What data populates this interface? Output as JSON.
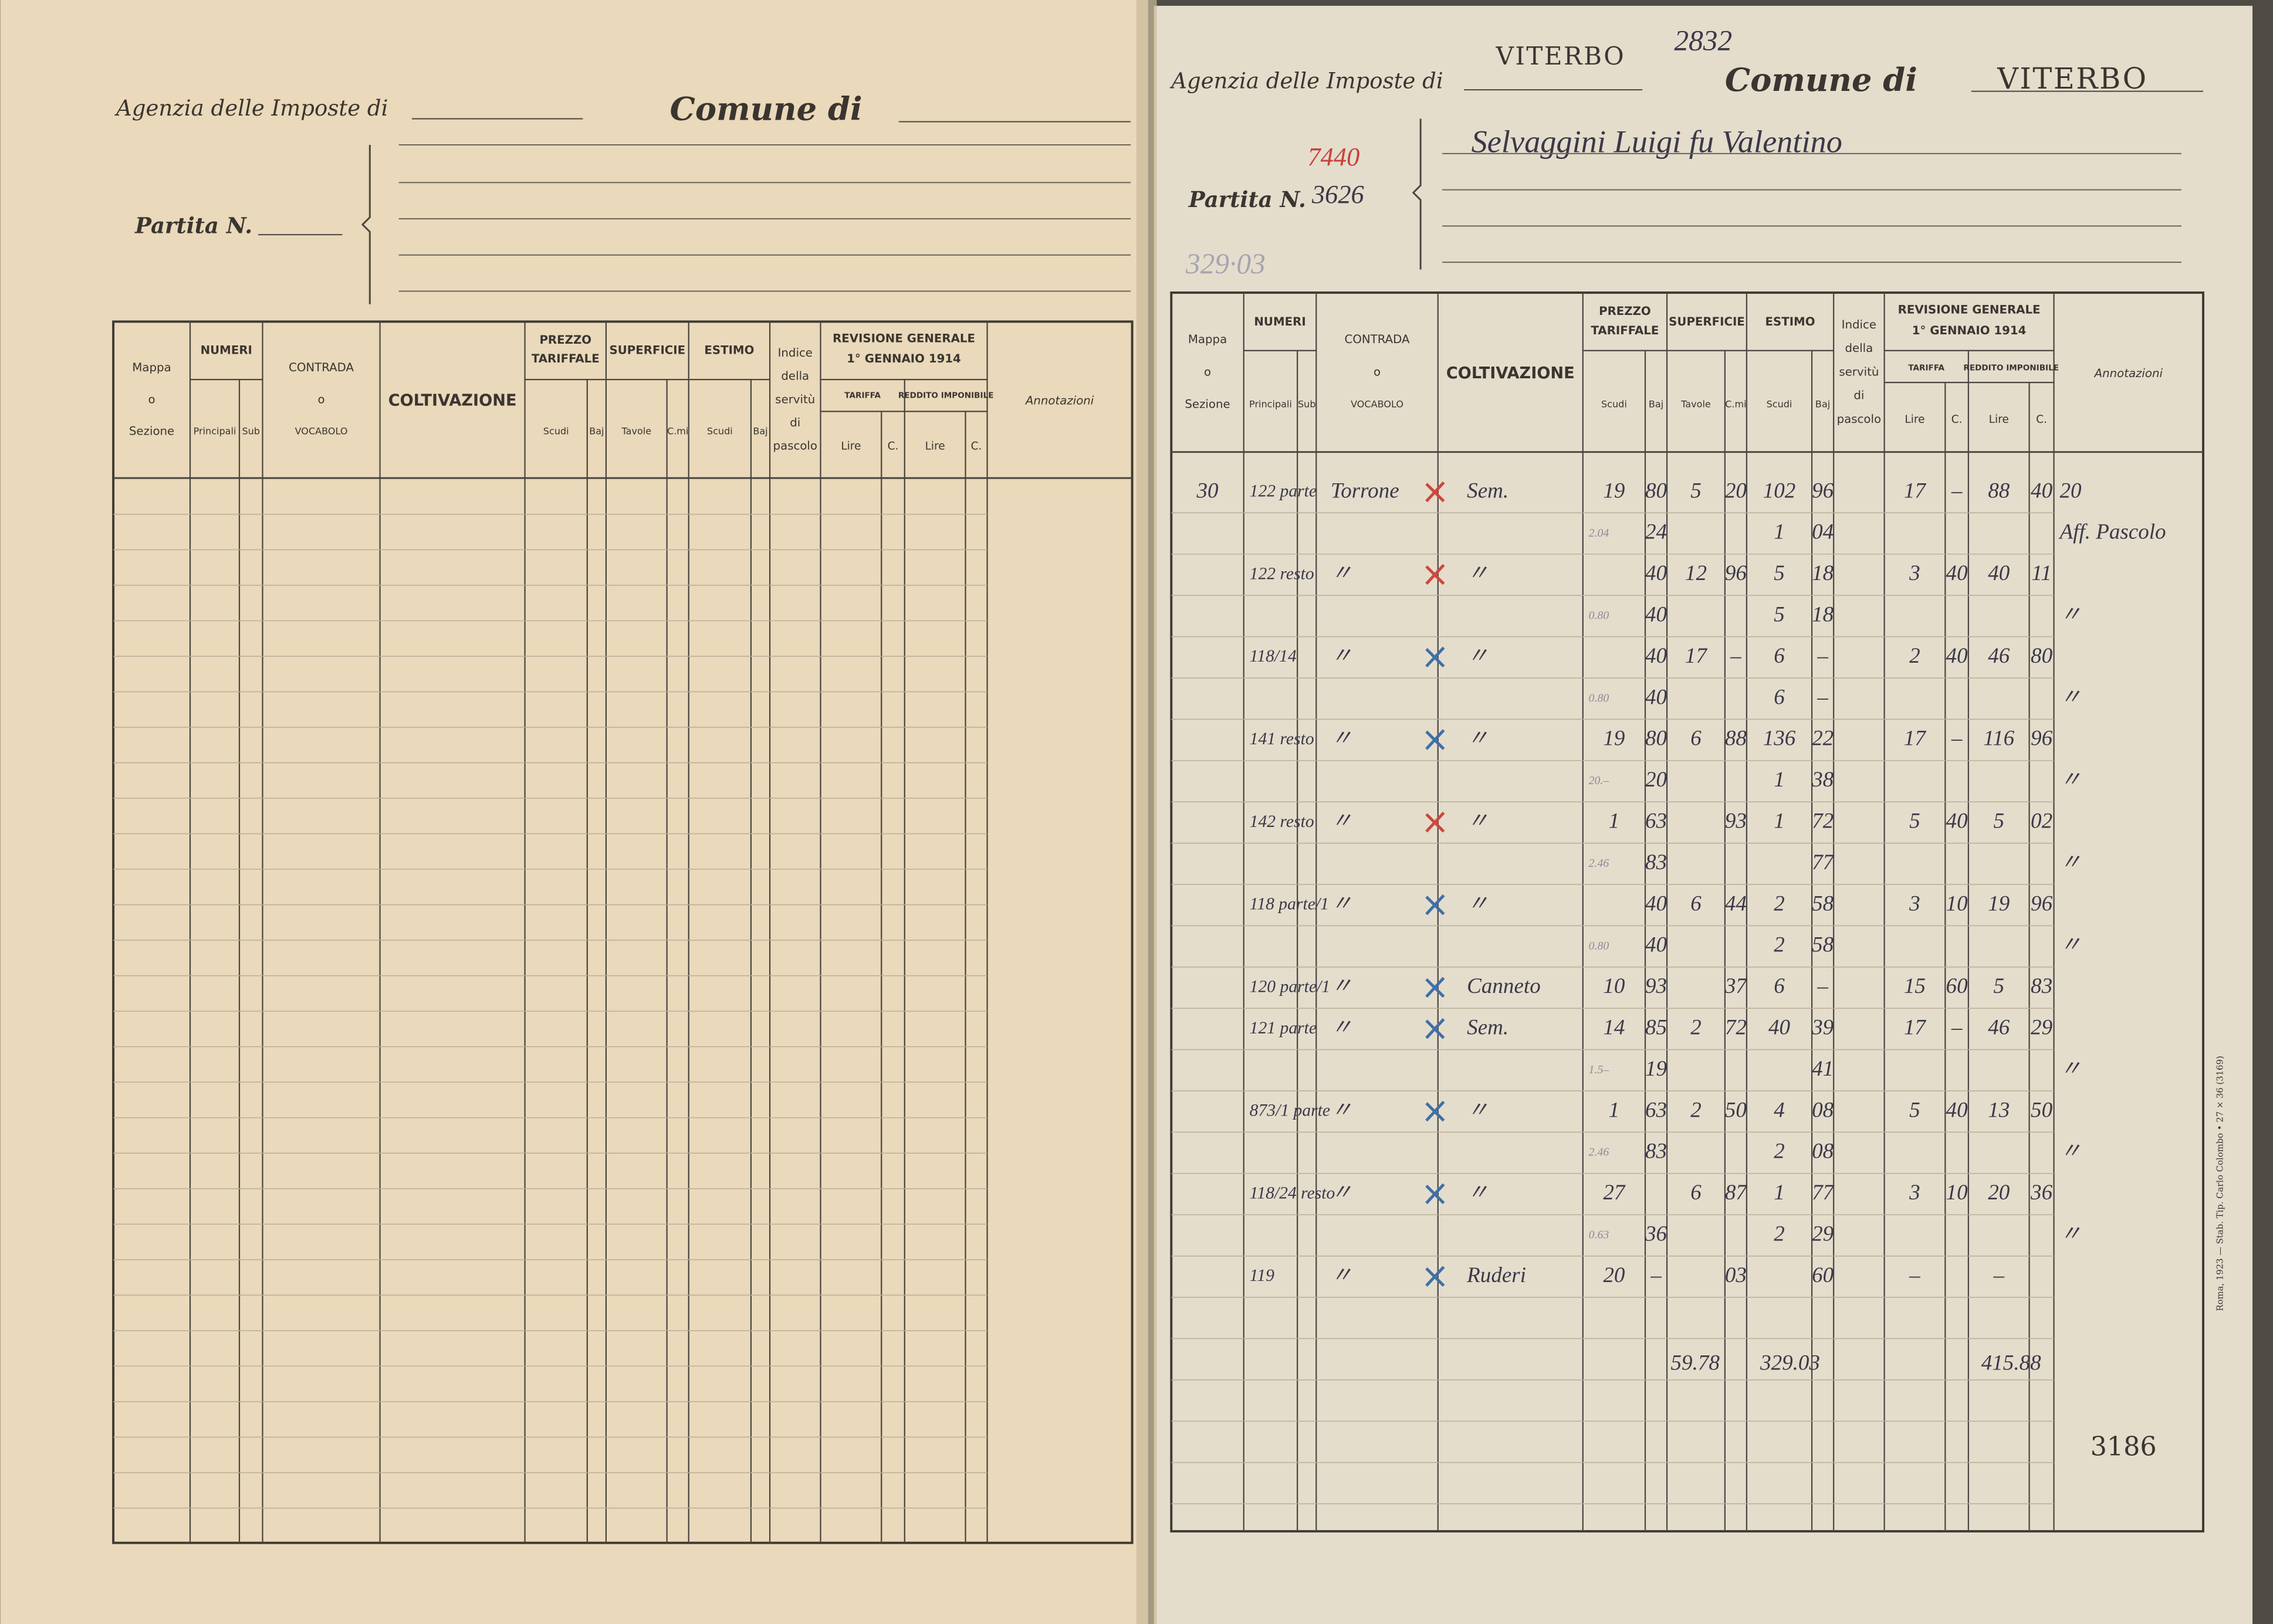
{
  "table_header": {
    "mappa": [
      "Mappa",
      "o",
      "Sezione"
    ],
    "numeri": "NUMERI",
    "principali": "Principali",
    "sub": "Sub",
    "contrada": [
      "CONTRADA",
      "o",
      "VOCABOLO"
    ],
    "coltivazione": "COLTIVAZIONE",
    "prezzo": [
      "PREZZO",
      "TARIFFALE"
    ],
    "scudi": "Scudi",
    "baj": "Baj",
    "superficie": "SUPERFICIE",
    "tavole": "Tavole",
    "cmi": "C.mi",
    "estimo": "ESTIMO",
    "indice": [
      "Indice",
      "della",
      "servitù",
      "di",
      "pascolo"
    ],
    "revisione": [
      "REVISIONE GENERALE",
      "1° GENNAIO 1914"
    ],
    "tariffa": "TARIFFA",
    "reddito": "REDDITO IMPONIBILE",
    "lire": "Lire",
    "c": "C.",
    "annotazioni": "Annotazioni"
  },
  "left_page": {
    "agency_label": "Agenzia delle Imposte di",
    "comune_label": "Comune di",
    "partita_label": "Partita N."
  },
  "right_page": {
    "agency_label": "Agenzia delle Imposte di",
    "agency_value": "VITERBO",
    "register_number": "2832",
    "comune_label": "Comune di",
    "comune_value": "VITERBO",
    "partita_label": "Partita N.",
    "partita_old": "7440",
    "partita_value": "3626",
    "owner": "Selvaggini Luigi fu Valentino",
    "pencil_note": "329·03",
    "rows": [
      {
        "map": "30",
        "num": "122 parte",
        "contrada": "Torrone",
        "colt": "Sem.",
        "ps": "19",
        "pb": "80",
        "tav": "5",
        "cmi": "20",
        "es": "102",
        "eb": "96",
        "tl": "17",
        "tc": "–",
        "rl": "88",
        "rc": "40",
        "ann": "20",
        "x_color": "#d0463c"
      },
      {
        "side": "2.04",
        "pb": "24",
        "es": "1",
        "eb": "04",
        "ann": "Aff. Pascolo"
      },
      {
        "num": "122 resto",
        "contrada": "〃",
        "colt": "〃",
        "pb": "40",
        "tav": "12",
        "cmi": "96",
        "es": "5",
        "eb": "18",
        "tl": "3",
        "tc": "40",
        "rl": "40",
        "rc": "11",
        "x_color": "#d0463c"
      },
      {
        "side": "0.80",
        "pb": "40",
        "es": "5",
        "eb": "18",
        "ann": "〃"
      },
      {
        "num": "118/14",
        "contrada": "〃",
        "colt": "〃",
        "pb": "40",
        "tav": "17",
        "cmi": "–",
        "es": "6",
        "eb": "–",
        "tl": "2",
        "tc": "40",
        "rl": "46",
        "rc": "80",
        "x_color": "#3f6fa8"
      },
      {
        "side": "0.80",
        "pb": "40",
        "es": "6",
        "eb": "–",
        "ann": "〃"
      },
      {
        "num": "141 resto",
        "contrada": "〃",
        "colt": "〃",
        "ps": "19",
        "pb": "80",
        "tav": "6",
        "cmi": "88",
        "es": "136",
        "eb": "22",
        "tl": "17",
        "tc": "–",
        "rl": "116",
        "rc": "96",
        "x_color": "#3f6fa8"
      },
      {
        "side": "20.–",
        "pb": "20",
        "es": "1",
        "eb": "38",
        "ann": "〃"
      },
      {
        "num": "142 resto",
        "contrada": "〃",
        "colt": "〃",
        "ps": "1",
        "pb": "63",
        "cmi": "93",
        "es": "1",
        "eb": "72",
        "tl": "5",
        "tc": "40",
        "rl": "5",
        "rc": "02",
        "x_color": "#d0463c"
      },
      {
        "side": "2.46",
        "pb": "83",
        "eb": "77",
        "ann": "〃"
      },
      {
        "num": "118 parte/1",
        "contrada": "〃",
        "colt": "〃",
        "pb": "40",
        "tav": "6",
        "cmi": "44",
        "es": "2",
        "eb": "58",
        "tl": "3",
        "tc": "10",
        "rl": "19",
        "rc": "96",
        "x_color": "#3f6fa8"
      },
      {
        "side": "0.80",
        "pb": "40",
        "es": "2",
        "eb": "58",
        "ann": "〃"
      },
      {
        "num": "120 parte/1",
        "contrada": "〃",
        "colt": "Canneto",
        "ps": "10",
        "pb": "93",
        "cmi": "37",
        "es": "6",
        "eb": "–",
        "tl": "15",
        "tc": "60",
        "rl": "5",
        "rc": "83",
        "x_color": "#3f6fa8"
      },
      {
        "num": "121 parte",
        "contrada": "〃",
        "colt": "Sem.",
        "ps": "14",
        "pb": "85",
        "tav": "2",
        "cmi": "72",
        "es": "40",
        "eb": "39",
        "tl": "17",
        "tc": "–",
        "rl": "46",
        "rc": "29",
        "x_color": "#3f6fa8"
      },
      {
        "side": "1.5–",
        "pb": "19",
        "eb": "41",
        "ann": "〃"
      },
      {
        "num": "873/1 parte",
        "contrada": "〃",
        "colt": "〃",
        "ps": "1",
        "pb": "63",
        "tav": "2",
        "cmi": "50",
        "es": "4",
        "eb": "08",
        "tl": "5",
        "tc": "40",
        "rl": "13",
        "rc": "50",
        "x_color": "#3f6fa8"
      },
      {
        "side": "2.46",
        "pb": "83",
        "es": "2",
        "eb": "08",
        "ann": "〃"
      },
      {
        "num": "118/24 resto",
        "contrada": "〃",
        "colt": "〃",
        "ps": "27",
        "tav": "6",
        "cmi": "87",
        "es": "1",
        "eb": "77",
        "tl": "3",
        "tc": "10",
        "rl": "20",
        "rc": "36",
        "x_color": "#3f6fa8"
      },
      {
        "side": "0.63",
        "pb": "36",
        "es": "2",
        "eb": "29",
        "ann": "〃"
      },
      {
        "num": "119",
        "contrada": "〃",
        "colt": "Ruderi",
        "ps": "20",
        "pb": "–",
        "cmi": "03",
        "eb": "60",
        "tl": "–",
        "rl": "–",
        "x_color": "#3f6fa8"
      }
    ],
    "totals": {
      "superficie": "59.78",
      "estimo": "329.03",
      "reddito": "415.88"
    },
    "page_number": "3186",
    "printer_note": "Roma, 1923 — Stab. Tip. Carlo Colombo • 27 × 36 (3169)"
  }
}
